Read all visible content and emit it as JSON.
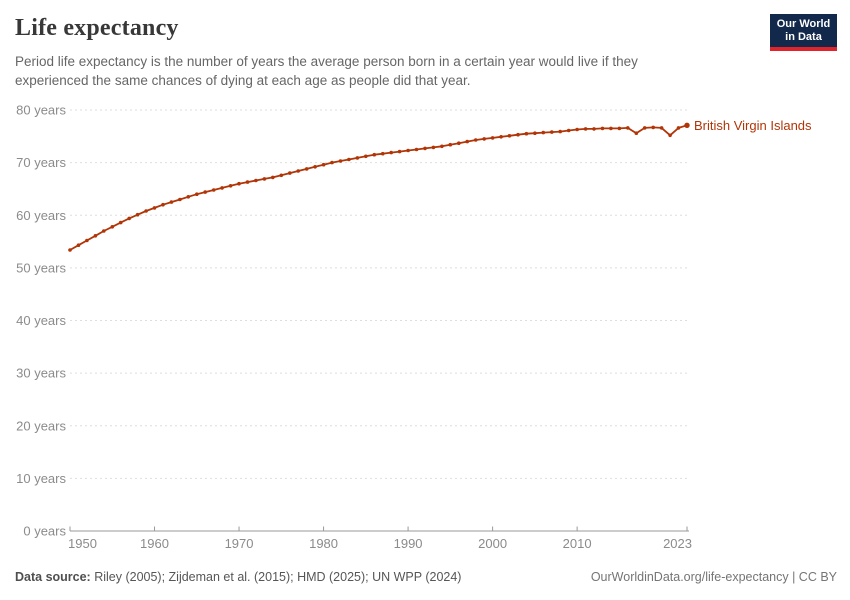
{
  "header": {
    "title": "Life expectancy",
    "subtitle": "Period life expectancy is the number of years the average person born in a certain year would live if they experienced the same chances of dying at each age as people did that year.",
    "logo": {
      "line1": "Our World",
      "line2": "in Data",
      "bg_color": "#12294b",
      "accent_color": "#e0242c"
    }
  },
  "chart_data": {
    "type": "line",
    "title": "Life expectancy",
    "entity_label": "British Virgin Islands",
    "xlim": [
      1950,
      2023
    ],
    "ylim": [
      0,
      80
    ],
    "x_ticks": [
      1950,
      1960,
      1970,
      1980,
      1990,
      2000,
      2010,
      2023
    ],
    "y_ticks": [
      0,
      10,
      20,
      30,
      40,
      50,
      60,
      70,
      80
    ],
    "y_tick_suffix": " years",
    "grid": "horizontal-dashed",
    "legend_position": "end-of-line",
    "series": [
      {
        "name": "British Virgin Islands",
        "color": "#b13507",
        "x": [
          1950,
          1951,
          1952,
          1953,
          1954,
          1955,
          1956,
          1957,
          1958,
          1959,
          1960,
          1961,
          1962,
          1963,
          1964,
          1965,
          1966,
          1967,
          1968,
          1969,
          1970,
          1971,
          1972,
          1973,
          1974,
          1975,
          1976,
          1977,
          1978,
          1979,
          1980,
          1981,
          1982,
          1983,
          1984,
          1985,
          1986,
          1987,
          1988,
          1989,
          1990,
          1991,
          1992,
          1993,
          1994,
          1995,
          1996,
          1997,
          1998,
          1999,
          2000,
          2001,
          2002,
          2003,
          2004,
          2005,
          2006,
          2007,
          2008,
          2009,
          2010,
          2011,
          2012,
          2013,
          2014,
          2015,
          2016,
          2017,
          2018,
          2019,
          2020,
          2021,
          2022,
          2023
        ],
        "values": [
          53.4,
          54.3,
          55.2,
          56.1,
          57.0,
          57.8,
          58.6,
          59.4,
          60.1,
          60.8,
          61.4,
          62.0,
          62.5,
          63.0,
          63.5,
          64.0,
          64.4,
          64.8,
          65.2,
          65.6,
          66.0,
          66.3,
          66.6,
          66.9,
          67.2,
          67.6,
          68.0,
          68.4,
          68.8,
          69.2,
          69.6,
          70.0,
          70.3,
          70.6,
          70.9,
          71.2,
          71.5,
          71.7,
          71.9,
          72.1,
          72.3,
          72.5,
          72.7,
          72.9,
          73.1,
          73.4,
          73.7,
          74.0,
          74.3,
          74.5,
          74.7,
          74.9,
          75.1,
          75.3,
          75.5,
          75.6,
          75.7,
          75.8,
          75.9,
          76.1,
          76.3,
          76.4,
          76.4,
          76.5,
          76.5,
          76.5,
          76.6,
          75.6,
          76.6,
          76.7,
          76.6,
          75.2,
          76.6,
          77.1
        ]
      }
    ],
    "theme": {
      "axis_color": "#999999",
      "gridline_color": "#dedede",
      "tick_text_color": "#8b8b8b"
    }
  },
  "footer": {
    "source_label": "Data source:",
    "source_text": " Riley (2005); Zijdeman et al. (2015); HMD (2025); UN WPP (2024)",
    "link_text": "OurWorldinData.org/life-expectancy | CC BY"
  }
}
